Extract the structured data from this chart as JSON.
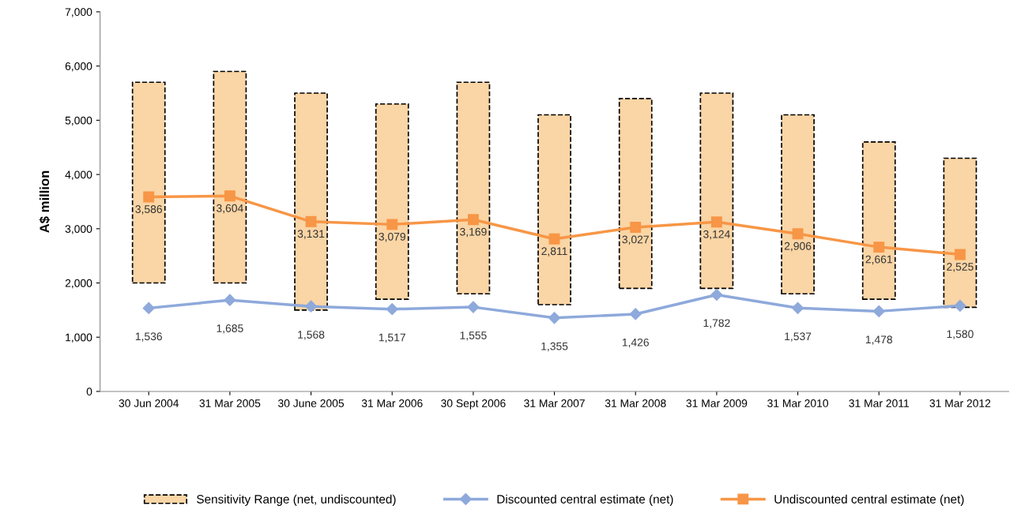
{
  "chart_data": {
    "type": "bar",
    "ylabel": "A$ million",
    "categories": [
      "30 Jun 2004",
      "31 Mar 2005",
      "30 June 2005",
      "31 Mar 2006",
      "30 Sept 2006",
      "31 Mar 2007",
      "31 Mar 2008",
      "31 Mar 2009",
      "31 Mar 2010",
      "31 Mar 2011",
      "31 Mar 2012"
    ],
    "series": [
      {
        "name": "Sensitivity Range (net, undiscounted)",
        "color": "#fad5a5",
        "line_style": "dashed",
        "base": [
          2000,
          2000,
          1500,
          1700,
          1800,
          1600,
          1900,
          1900,
          1800,
          1700,
          1550
        ],
        "values": [
          3700,
          3900,
          4000,
          3600,
          3900,
          3500,
          3500,
          3600,
          3300,
          2900,
          2750
        ]
      },
      {
        "name": "Discounted central estimate (net)",
        "type": "line",
        "color": "#8ea9db",
        "marker": "diamond",
        "values": [
          1536,
          1685,
          1568,
          1517,
          1555,
          1355,
          1426,
          1782,
          1537,
          1478,
          1580
        ],
        "value_labels": [
          "1,536",
          "1,685",
          "1,568",
          "1,517",
          "1,555",
          "1,355",
          "1,426",
          "1,782",
          "1,537",
          "1,478",
          "1,580"
        ]
      },
      {
        "name": "Undiscounted central estimate (net)",
        "type": "line",
        "color": "#f79646",
        "marker": "square",
        "values": [
          3586,
          3604,
          3131,
          3079,
          3169,
          2811,
          3027,
          3124,
          2906,
          2661,
          2525
        ],
        "value_labels": [
          "3,586",
          "3,604",
          "3,131",
          "3,079",
          "3,169",
          "2,811",
          "3,027",
          "3,124",
          "2,906",
          "2,661",
          "2,525"
        ]
      }
    ],
    "ylim": [
      0,
      7000
    ],
    "yticks": [
      {
        "value": 0,
        "label": "0"
      },
      {
        "value": 1000,
        "label": "1,000"
      },
      {
        "value": 2000,
        "label": "2,000"
      },
      {
        "value": 3000,
        "label": "3,000"
      },
      {
        "value": 4000,
        "label": "4,000"
      },
      {
        "value": 5000,
        "label": "5,000"
      },
      {
        "value": 6000,
        "label": "6,000"
      },
      {
        "value": 7000,
        "label": "7,000"
      }
    ],
    "grid": false,
    "legend": "bottom"
  }
}
